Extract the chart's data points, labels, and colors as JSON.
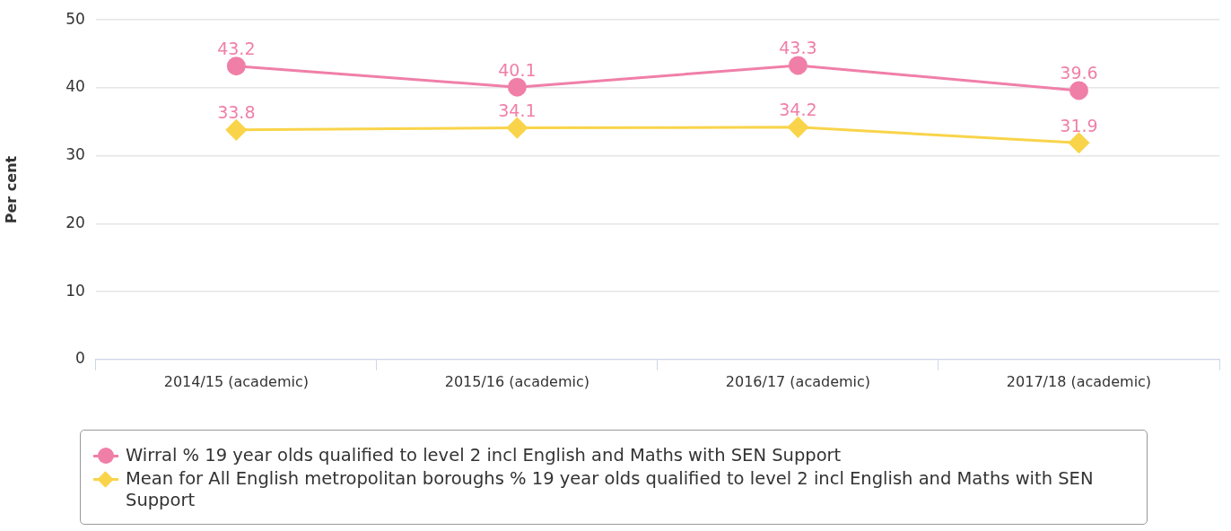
{
  "chart_data": {
    "type": "line",
    "ylabel": "Per cent",
    "categories": [
      "2014/15 (academic)",
      "2015/16 (academic)",
      "2016/17 (academic)",
      "2017/18 (academic)"
    ],
    "series": [
      {
        "name": "Wirral % 19 year olds qualified to level 2 incl English and Maths with SEN Support",
        "color": "#f07fa8",
        "marker": "circle",
        "values": [
          43.2,
          40.1,
          43.3,
          39.6
        ]
      },
      {
        "name": "Mean for All English metropolitan boroughs % 19 year olds qualified to level 2 incl English and Maths with SEN Support",
        "color": "#f9d44a",
        "marker": "diamond",
        "values": [
          33.8,
          34.1,
          34.2,
          31.9
        ]
      }
    ],
    "ylim": [
      0,
      50
    ],
    "yticks": [
      0,
      10,
      20,
      30,
      40,
      50
    ],
    "grid": "y",
    "legend": "bottom",
    "data_labels": true
  }
}
